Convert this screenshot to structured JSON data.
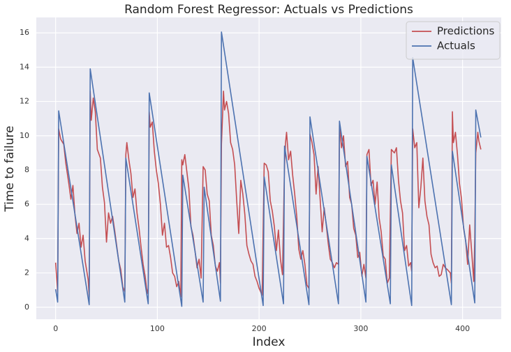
{
  "chart_data": {
    "type": "line",
    "title": "Random Forest Regressor: Actuals vs Predictions",
    "x_label": "Index",
    "y_label": "Time to failure",
    "xlim": [
      -19,
      438
    ],
    "ylim": [
      -0.7,
      16.9
    ],
    "xticks": [
      0,
      100,
      200,
      300,
      400
    ],
    "yticks": [
      0,
      2,
      4,
      6,
      8,
      10,
      12,
      14,
      16
    ],
    "grid": true,
    "legend": "upper right",
    "series": [
      {
        "name": "Predictions",
        "color": "#c44e52",
        "x": [
          0,
          2,
          3,
          5,
          8,
          10,
          13,
          15,
          17,
          19,
          21,
          23,
          25,
          27,
          29,
          32,
          33,
          34,
          35,
          37,
          39,
          41,
          44,
          46,
          48,
          50,
          52,
          54,
          56,
          58,
          60,
          62,
          64,
          66,
          68,
          69,
          70,
          72,
          74,
          76,
          78,
          80,
          82,
          84,
          86,
          88,
          90,
          91,
          92,
          93,
          95,
          97,
          99,
          101,
          103,
          105,
          107,
          109,
          111,
          113,
          115,
          117,
          119,
          121,
          123,
          124,
          125,
          127,
          129,
          131,
          133,
          135,
          137,
          139,
          141,
          143,
          145,
          147,
          149,
          151,
          153,
          155,
          157,
          159,
          161,
          162,
          163,
          165,
          166,
          168,
          170,
          172,
          174,
          176,
          178,
          180,
          182,
          184,
          186,
          188,
          190,
          192,
          194,
          196,
          198,
          200,
          203,
          205,
          207,
          209,
          211,
          213,
          215,
          217,
          219,
          221,
          223,
          225,
          226,
          227,
          229,
          231,
          233,
          235,
          237,
          239,
          241,
          243,
          245,
          247,
          249,
          250,
          252,
          254,
          256,
          258,
          260,
          262,
          264,
          266,
          268,
          270,
          272,
          274,
          276,
          278,
          279,
          281,
          283,
          285,
          287,
          289,
          291,
          293,
          295,
          297,
          299,
          301,
          303,
          305,
          306,
          308,
          310,
          312,
          314,
          316,
          318,
          320,
          322,
          324,
          326,
          328,
          330,
          333,
          335,
          337,
          339,
          341,
          343,
          345,
          347,
          349,
          350,
          351,
          353,
          355,
          357,
          359,
          361,
          363,
          365,
          367,
          369,
          371,
          373,
          375,
          377,
          379,
          381,
          383,
          385,
          388,
          389,
          390,
          391,
          393,
          395,
          397,
          399,
          401,
          403,
          405,
          407,
          409,
          411,
          412,
          413,
          415,
          416,
          418
        ],
        "values": [
          2.6,
          0.9,
          10.4,
          9.8,
          9.5,
          8.4,
          7.2,
          6.3,
          7.1,
          5.4,
          4.3,
          4.9,
          3.5,
          4.2,
          2.7,
          1.6,
          0.6,
          12.6,
          10.9,
          12.2,
          11.4,
          9.2,
          8.7,
          7.0,
          6.1,
          3.8,
          5.5,
          4.9,
          5.3,
          4.5,
          3.6,
          2.7,
          2.2,
          1.2,
          0.9,
          8.9,
          9.6,
          8.6,
          7.8,
          6.4,
          6.9,
          5.5,
          4.6,
          3.5,
          2.5,
          1.8,
          0.8,
          1.1,
          11.4,
          10.5,
          10.8,
          9.1,
          8.0,
          7.2,
          6.0,
          4.2,
          4.9,
          3.5,
          3.6,
          2.9,
          2.0,
          1.8,
          1.2,
          1.5,
          0.6,
          8.6,
          8.3,
          8.9,
          7.9,
          6.9,
          4.7,
          4.2,
          3.3,
          2.3,
          2.8,
          1.7,
          8.2,
          8.0,
          6.6,
          6.2,
          4.2,
          3.6,
          2.4,
          2.1,
          2.6,
          1.4,
          9.5,
          12.6,
          11.5,
          12.0,
          11.3,
          9.6,
          9.2,
          8.3,
          6.2,
          4.3,
          7.4,
          6.6,
          5.4,
          3.6,
          3.1,
          2.7,
          2.5,
          1.8,
          1.5,
          1.1,
          0.7,
          8.4,
          8.3,
          7.9,
          6.2,
          5.6,
          4.7,
          3.3,
          4.5,
          2.8,
          1.9,
          8.3,
          9.6,
          10.2,
          8.6,
          9.1,
          7.7,
          6.6,
          5.3,
          3.4,
          2.8,
          3.3,
          2.5,
          1.3,
          1.1,
          10.1,
          9.6,
          8.9,
          6.6,
          8.2,
          6.3,
          4.4,
          5.8,
          4.8,
          3.7,
          2.8,
          2.6,
          2.3,
          2.6,
          2.5,
          10.6,
          9.3,
          10.0,
          8.2,
          8.5,
          6.4,
          6.0,
          4.6,
          4.2,
          2.9,
          3.2,
          1.8,
          2.5,
          1.7,
          8.9,
          9.2,
          7.1,
          7.4,
          6.0,
          7.3,
          5.2,
          4.4,
          3.0,
          2.8,
          1.4,
          1.7,
          9.2,
          9.0,
          9.3,
          7.4,
          6.2,
          5.5,
          3.3,
          3.6,
          2.4,
          2.6,
          2.1,
          10.4,
          9.3,
          9.6,
          5.8,
          7.0,
          8.7,
          6.2,
          5.3,
          4.8,
          3.1,
          2.6,
          2.3,
          2.4,
          1.8,
          1.9,
          2.5,
          2.3,
          2.2,
          2.0,
          1.4,
          11.4,
          9.6,
          10.2,
          8.9,
          7.2,
          6.3,
          4.6,
          3.9,
          2.5,
          4.8,
          3.2,
          1.5,
          4.0,
          9.0,
          10.2,
          9.7,
          9.2
        ]
      },
      {
        "name": "Actuals",
        "color": "#4c72b0",
        "x": [
          0,
          2,
          3,
          33,
          34,
          68,
          69,
          91,
          92,
          124,
          125,
          145,
          146,
          162,
          163,
          204,
          205,
          224,
          225,
          249,
          250,
          278,
          279,
          305,
          306,
          329,
          330,
          350,
          351,
          389,
          390,
          412,
          413,
          418
        ],
        "values": [
          1.05,
          0.3,
          11.45,
          0.15,
          13.9,
          0.3,
          8.7,
          0.2,
          12.5,
          0.05,
          7.7,
          0.3,
          7.0,
          0.35,
          16.05,
          0.1,
          7.6,
          0.2,
          9.4,
          0.15,
          11.1,
          0.2,
          10.85,
          0.3,
          8.8,
          0.2,
          8.3,
          0.1,
          14.55,
          0.15,
          9.1,
          0.25,
          11.5,
          9.9
        ]
      }
    ]
  }
}
